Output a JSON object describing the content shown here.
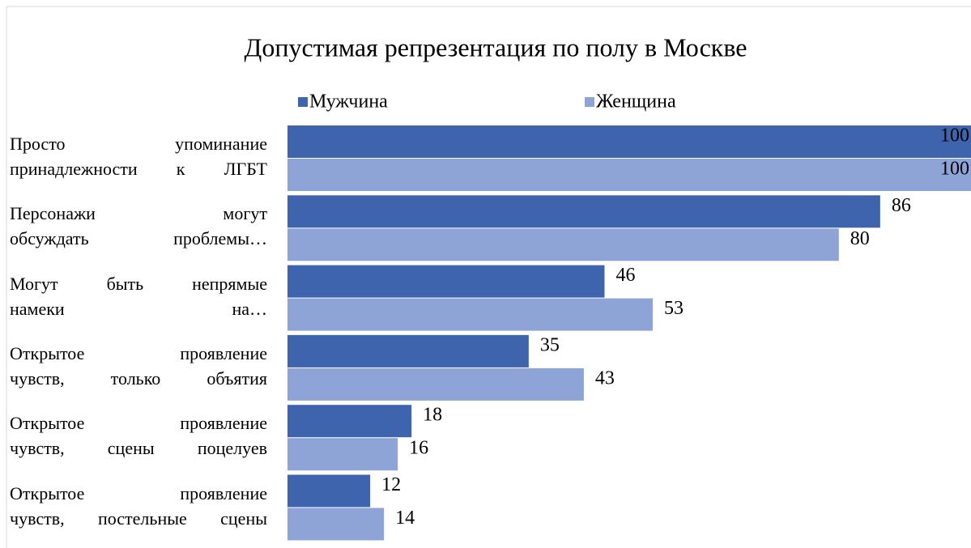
{
  "chart_data": {
    "type": "bar",
    "orientation": "horizontal",
    "title": "Допустимая репрезентация по полу в Москве",
    "categories": [
      "Просто упоминание\nпринадлежности к ЛГБТ",
      "Персонажи могут\nобсуждать проблемы…",
      "Могут быть непрямые\nнамеки на…",
      "Открытое проявление\nчувств, только объятия",
      "Открытое проявление\nчувств, сцены поцелуев",
      "Открытое проявление\nчувств, постельные сцены"
    ],
    "series": [
      {
        "name": "Мужчина",
        "color": "#3d64ad",
        "values": [
          100,
          86,
          46,
          35,
          18,
          12
        ]
      },
      {
        "name": "Женщина",
        "color": "#8fa4d6",
        "values": [
          100,
          80,
          53,
          43,
          16,
          14
        ]
      }
    ],
    "xlim": [
      0,
      100
    ],
    "legend": "top"
  }
}
